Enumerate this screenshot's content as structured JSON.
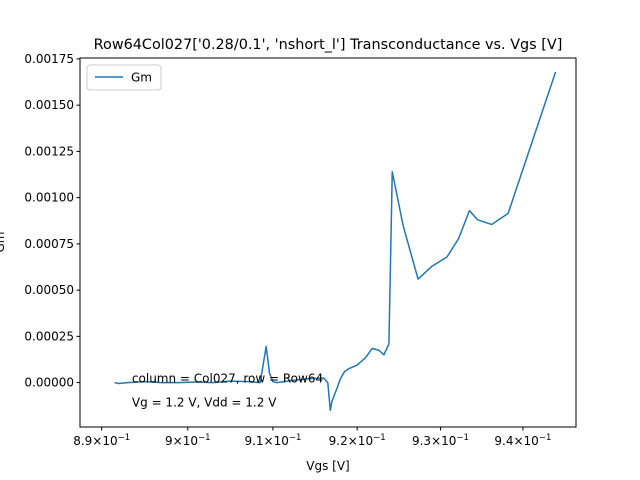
{
  "chart_data": {
    "type": "line",
    "title": "Row64Col027['0.28/0.1', 'nshort_l'] Transconductance vs. Vgs [V]",
    "xlabel": "Vgs [V]",
    "ylabel": "Gm",
    "xlim": [
      0.8875,
      0.9465
    ],
    "ylim": [
      -0.00024,
      0.001755
    ],
    "x_scale": "log",
    "grid": false,
    "legend_placement": "top-left",
    "x_ticks": [
      {
        "value": 0.89,
        "base": "8.9",
        "exp": "−1"
      },
      {
        "value": 0.9,
        "base": "9",
        "exp": "−1"
      },
      {
        "value": 0.91,
        "base": "9.1",
        "exp": "−1"
      },
      {
        "value": 0.92,
        "base": "9.2",
        "exp": "−1"
      },
      {
        "value": 0.93,
        "base": "9.3",
        "exp": "−1"
      },
      {
        "value": 0.94,
        "base": "9.4",
        "exp": "−1"
      }
    ],
    "x_tick_mult": "×10",
    "y_ticks": [
      {
        "value": 0.0,
        "label": "0.00000"
      },
      {
        "value": 0.00025,
        "label": "0.00025"
      },
      {
        "value": 0.0005,
        "label": "0.00050"
      },
      {
        "value": 0.00075,
        "label": "0.00075"
      },
      {
        "value": 0.001,
        "label": "0.00100"
      },
      {
        "value": 0.00125,
        "label": "0.00125"
      },
      {
        "value": 0.0015,
        "label": "0.00150"
      },
      {
        "value": 0.00175,
        "label": "0.00175"
      }
    ],
    "annotations": [
      {
        "text": "column = Col027, row = Row64",
        "x": 0.8935,
        "y": 0.0
      },
      {
        "text": "Vg = 1.2 V, Vdd = 1.2 V",
        "x": 0.8935,
        "y": -0.000128
      }
    ],
    "series": [
      {
        "name": "Gm",
        "color": "#1f77b4",
        "x": [
          0.8915,
          0.892,
          0.893,
          0.895,
          0.897,
          0.899,
          0.901,
          0.903,
          0.905,
          0.907,
          0.9085,
          0.9092,
          0.9096,
          0.91,
          0.9105,
          0.912,
          0.914,
          0.916,
          0.9165,
          0.9168,
          0.917,
          0.9176,
          0.918,
          0.9185,
          0.919,
          0.92,
          0.921,
          0.9218,
          0.9226,
          0.9232,
          0.9238,
          0.9242,
          0.9255,
          0.9273,
          0.929,
          0.9308,
          0.9322,
          0.9335,
          0.9345,
          0.9362,
          0.9382,
          0.944
        ],
        "y": [
          0.0,
          -5e-06,
          0.0,
          5e-06,
          0.0,
          0.0,
          3e-06,
          0.0,
          8e-06,
          5e-06,
          0.0,
          0.000195,
          5e-05,
          5e-06,
          0.0,
          1e-05,
          2e-05,
          2.5e-05,
          0.0,
          -0.00015,
          -0.0001,
          -3e-05,
          2e-05,
          6e-05,
          7.5e-05,
          9.5e-05,
          0.000135,
          0.000185,
          0.000175,
          0.00015,
          0.00021,
          0.00114,
          0.00085,
          0.00056,
          0.00063,
          0.00068,
          0.00078,
          0.00093,
          0.00088,
          0.000855,
          0.000915,
          0.00168
        ]
      }
    ]
  }
}
